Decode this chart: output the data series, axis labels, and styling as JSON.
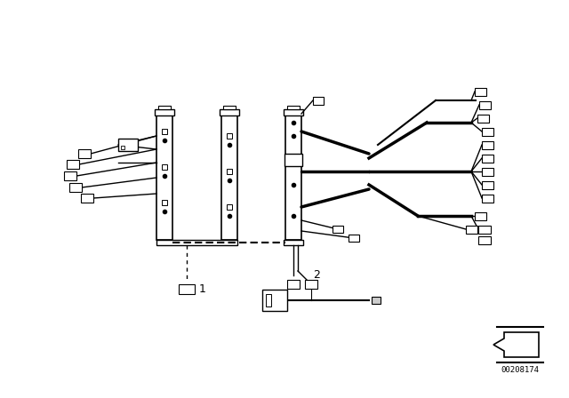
{
  "bg_color": "#ffffff",
  "line_color": "#000000",
  "fig_width": 6.4,
  "fig_height": 4.48,
  "dpi": 100,
  "part_number": "00208174",
  "label1": "1",
  "label2": "2"
}
